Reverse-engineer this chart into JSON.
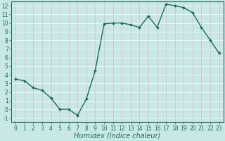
{
  "x": [
    0,
    1,
    2,
    3,
    4,
    5,
    6,
    7,
    8,
    9,
    10,
    11,
    12,
    13,
    14,
    15,
    16,
    17,
    18,
    19,
    20,
    21,
    22,
    23
  ],
  "y": [
    3.5,
    3.3,
    2.5,
    2.2,
    1.3,
    0.0,
    0.0,
    -0.7,
    1.2,
    4.5,
    9.9,
    10.0,
    10.0,
    9.8,
    9.5,
    10.8,
    9.5,
    12.2,
    12.0,
    11.8,
    11.2,
    9.5,
    8.0,
    6.5
  ],
  "line_color": "#1a6b5a",
  "marker": "D",
  "marker_size": 2.0,
  "line_width": 1.0,
  "bg_color": "#c8e8e8",
  "hgrid_color": "#ffffff",
  "vgrid_color": "#e8b8b8",
  "xlabel": "Humidex (Indice chaleur)",
  "xlabel_style": "italic",
  "xlabel_fontsize": 7,
  "ylim": [
    -1.5,
    12.5
  ],
  "xlim": [
    -0.5,
    23.5
  ],
  "yticks": [
    -1,
    0,
    1,
    2,
    3,
    4,
    5,
    6,
    7,
    8,
    9,
    10,
    11,
    12
  ],
  "xticks": [
    0,
    1,
    2,
    3,
    4,
    5,
    6,
    7,
    8,
    9,
    10,
    11,
    12,
    13,
    14,
    15,
    16,
    17,
    18,
    19,
    20,
    21,
    22,
    23
  ],
  "tick_fontsize": 5.5,
  "tick_color": "#1a6b5a",
  "spine_color": "#1a6b5a"
}
